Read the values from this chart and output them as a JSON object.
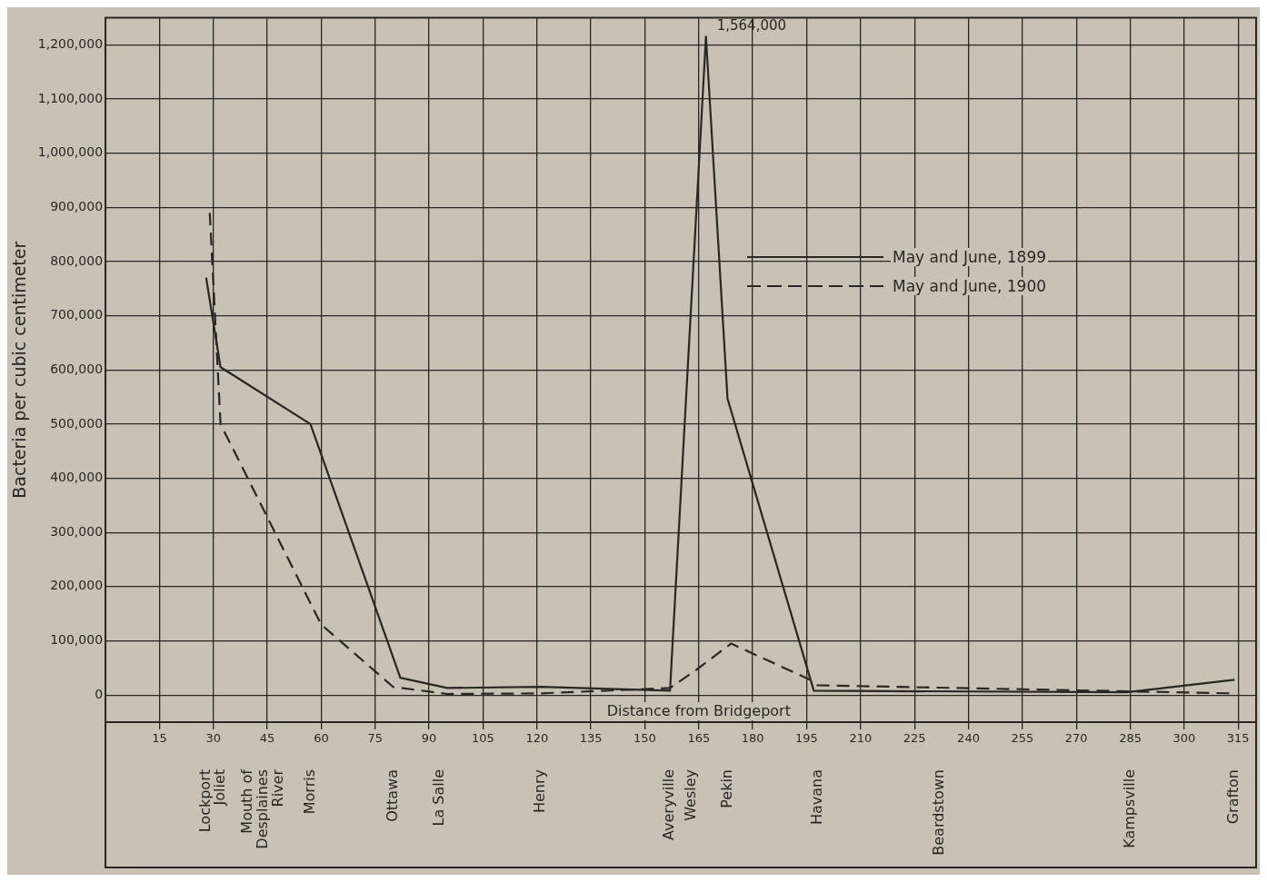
{
  "chart_data": {
    "type": "line",
    "xlabel": "Distance from Bridgeport",
    "ylabel": "Bacteria per cubic centimeter",
    "xlim": [
      0,
      320
    ],
    "ylim": [
      -50000,
      1250000
    ],
    "xticks": [
      15,
      30,
      45,
      60,
      75,
      90,
      105,
      120,
      135,
      150,
      165,
      180,
      195,
      210,
      225,
      240,
      255,
      270,
      285,
      300,
      315
    ],
    "yticks": [
      {
        "value": 0,
        "label": "0"
      },
      {
        "value": 100000,
        "label": "100,000"
      },
      {
        "value": 200000,
        "label": "200,000"
      },
      {
        "value": 300000,
        "label": "300,000"
      },
      {
        "value": 400000,
        "label": "400,000"
      },
      {
        "value": 500000,
        "label": "500,000"
      },
      {
        "value": 600000,
        "label": "600,000"
      },
      {
        "value": 700000,
        "label": "700,000"
      },
      {
        "value": 800000,
        "label": "800,000"
      },
      {
        "value": 900000,
        "label": "900,000"
      },
      {
        "value": 1000000,
        "label": "1,000,000"
      },
      {
        "value": 1100000,
        "label": "1,100,000"
      },
      {
        "value": 1200000,
        "label": "1,200,000"
      }
    ],
    "grid": true,
    "legend": "right",
    "marker": "none",
    "series": [
      {
        "name": "May and June, 1899",
        "color": "#2a2622",
        "line_style": "solid",
        "x": [
          28,
          32,
          57,
          82,
          95,
          121,
          157,
          167,
          173,
          197,
          284,
          314
        ],
        "values": [
          770000,
          605000,
          500000,
          32000,
          13000,
          15000,
          8000,
          1215000,
          547000,
          8000,
          5000,
          28000
        ]
      },
      {
        "name": "May and June, 1900",
        "color": "#2a2622",
        "line_style": "dashed",
        "x": [
          29,
          32,
          60,
          80,
          95,
          121,
          157,
          164,
          174,
          196,
          198,
          314
        ],
        "values": [
          890000,
          500000,
          130000,
          15000,
          2000,
          3000,
          13000,
          45000,
          95000,
          28000,
          18000,
          3000
        ]
      }
    ],
    "annotations": [
      {
        "text": "1,564,000",
        "x": 167,
        "y": 1215000
      },
      "Lockport",
      "Joliet",
      "Mouth of Desplaines River",
      "Morris",
      "Ottawa",
      "La Salle",
      "Henry",
      "Averyville",
      "Wesley",
      "Pekin",
      "Havana",
      "Beardstown",
      "Kampsville",
      "Grafton"
    ]
  }
}
